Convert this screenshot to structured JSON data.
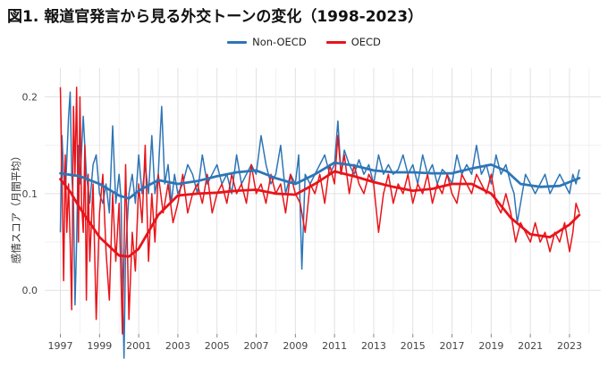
{
  "title": "図1. 報道官発言から見る外交トーンの変化（1998-2023）",
  "legend": [
    {
      "name": "Non-OECD",
      "color": "#2e75b6"
    },
    {
      "name": "OECD",
      "color": "#e8141a"
    }
  ],
  "chart_data": {
    "type": "line",
    "title": "図1. 報道官発言から見る外交トーンの変化（1998-2023）",
    "xlabel": "",
    "ylabel": "感情スコア（月間平均）",
    "xlim": [
      1996.2,
      2024.6
    ],
    "ylim": [
      -0.045,
      0.23
    ],
    "x_ticks": [
      1997,
      1999,
      2001,
      2003,
      2005,
      2007,
      2009,
      2011,
      2013,
      2015,
      2017,
      2019,
      2021,
      2023
    ],
    "x_tick_labels": [
      "1997",
      "1999",
      "2001",
      "2003",
      "2005",
      "2007",
      "2009",
      "2011",
      "2013",
      "2015",
      "2017",
      "2019",
      "2021",
      "2023"
    ],
    "y_ticks": [
      0.0,
      0.1,
      0.2
    ],
    "y_tick_labels": [
      "0.0",
      "0.1",
      "0.2"
    ],
    "grid": true,
    "legend_position": "top",
    "smooth_series": [
      {
        "name": "Non-OECD",
        "color": "#2e75b6",
        "x": [
          1997.0,
          1998.0,
          1999.0,
          2000.0,
          2000.5,
          2001.0,
          2002.0,
          2003.0,
          2004.0,
          2005.0,
          2006.0,
          2007.0,
          2008.0,
          2009.0,
          2010.0,
          2011.0,
          2012.0,
          2013.0,
          2014.0,
          2015.0,
          2016.0,
          2017.0,
          2018.0,
          2019.0,
          2019.8,
          2020.5,
          2021.5,
          2022.5,
          2023.5
        ],
        "y": [
          0.121,
          0.118,
          0.11,
          0.098,
          0.095,
          0.103,
          0.114,
          0.11,
          0.113,
          0.118,
          0.122,
          0.124,
          0.116,
          0.11,
          0.12,
          0.132,
          0.129,
          0.124,
          0.122,
          0.122,
          0.121,
          0.121,
          0.126,
          0.13,
          0.123,
          0.11,
          0.107,
          0.108,
          0.116
        ]
      },
      {
        "name": "OECD",
        "color": "#e8141a",
        "x": [
          1997.0,
          1997.5,
          1998.0,
          1999.0,
          2000.0,
          2000.5,
          2001.0,
          2002.0,
          2003.0,
          2004.0,
          2005.0,
          2006.0,
          2007.0,
          2008.0,
          2009.0,
          2010.0,
          2011.0,
          2012.0,
          2013.0,
          2014.0,
          2015.0,
          2016.0,
          2017.0,
          2018.0,
          2019.0,
          2020.0,
          2021.0,
          2022.0,
          2023.0,
          2023.5
        ],
        "y": [
          0.115,
          0.102,
          0.085,
          0.055,
          0.036,
          0.035,
          0.043,
          0.078,
          0.098,
          0.1,
          0.101,
          0.103,
          0.104,
          0.1,
          0.099,
          0.11,
          0.123,
          0.118,
          0.112,
          0.107,
          0.103,
          0.105,
          0.11,
          0.11,
          0.1,
          0.075,
          0.058,
          0.055,
          0.068,
          0.078
        ]
      }
    ],
    "series": [
      {
        "name": "Non-OECD",
        "color": "#2e75b6",
        "x": [
          1997.0,
          1997.08,
          1997.17,
          1997.25,
          1997.33,
          1997.42,
          1997.5,
          1997.58,
          1997.67,
          1997.75,
          1997.83,
          1997.92,
          1998.0,
          1998.17,
          1998.33,
          1998.5,
          1998.67,
          1998.83,
          1999.0,
          1999.17,
          1999.33,
          1999.5,
          1999.67,
          1999.83,
          2000.0,
          2000.1,
          2000.17,
          2000.25,
          2000.33,
          2000.5,
          2000.67,
          2000.83,
          2001.0,
          2001.17,
          2001.33,
          2001.5,
          2001.67,
          2001.83,
          2002.0,
          2002.17,
          2002.33,
          2002.5,
          2002.67,
          2002.83,
          2003.0,
          2003.25,
          2003.5,
          2003.75,
          2004.0,
          2004.25,
          2004.5,
          2004.75,
          2005.0,
          2005.25,
          2005.5,
          2005.75,
          2006.0,
          2006.25,
          2006.5,
          2006.75,
          2007.0,
          2007.25,
          2007.5,
          2007.75,
          2008.0,
          2008.25,
          2008.5,
          2008.75,
          2009.0,
          2009.17,
          2009.33,
          2009.5,
          2009.75,
          2010.0,
          2010.25,
          2010.5,
          2010.75,
          2011.0,
          2011.17,
          2011.33,
          2011.5,
          2011.75,
          2012.0,
          2012.25,
          2012.5,
          2012.75,
          2013.0,
          2013.25,
          2013.5,
          2013.75,
          2014.0,
          2014.25,
          2014.5,
          2014.75,
          2015.0,
          2015.25,
          2015.5,
          2015.75,
          2016.0,
          2016.25,
          2016.5,
          2016.75,
          2017.0,
          2017.25,
          2017.5,
          2017.75,
          2018.0,
          2018.25,
          2018.5,
          2018.75,
          2019.0,
          2019.25,
          2019.5,
          2019.75,
          2020.0,
          2020.17,
          2020.33,
          2020.5,
          2020.75,
          2021.0,
          2021.25,
          2021.5,
          2021.75,
          2022.0,
          2022.25,
          2022.5,
          2022.75,
          2023.0,
          2023.17,
          2023.33,
          2023.5
        ],
        "y": [
          0.06,
          0.16,
          0.12,
          0.1,
          0.135,
          0.18,
          0.205,
          0.12,
          0.09,
          -0.015,
          0.05,
          0.15,
          0.11,
          0.18,
          0.12,
          0.09,
          0.13,
          0.14,
          0.1,
          0.09,
          0.11,
          0.08,
          0.17,
          0.09,
          0.12,
          0.095,
          0.01,
          -0.07,
          0.04,
          0.1,
          0.12,
          0.09,
          0.14,
          0.1,
          0.13,
          0.1,
          0.16,
          0.1,
          0.12,
          0.19,
          0.11,
          0.13,
          0.09,
          0.12,
          0.1,
          0.11,
          0.13,
          0.12,
          0.1,
          0.14,
          0.11,
          0.12,
          0.13,
          0.11,
          0.12,
          0.1,
          0.14,
          0.11,
          0.12,
          0.13,
          0.12,
          0.16,
          0.13,
          0.11,
          0.12,
          0.15,
          0.1,
          0.12,
          0.11,
          0.14,
          0.022,
          0.12,
          0.11,
          0.12,
          0.13,
          0.14,
          0.12,
          0.13,
          0.175,
          0.12,
          0.145,
          0.13,
          0.12,
          0.135,
          0.12,
          0.13,
          0.11,
          0.14,
          0.12,
          0.13,
          0.12,
          0.125,
          0.14,
          0.12,
          0.13,
          0.11,
          0.14,
          0.12,
          0.13,
          0.11,
          0.125,
          0.12,
          0.11,
          0.14,
          0.12,
          0.13,
          0.12,
          0.15,
          0.12,
          0.13,
          0.11,
          0.14,
          0.12,
          0.13,
          0.11,
          0.1,
          0.07,
          0.09,
          0.12,
          0.11,
          0.1,
          0.11,
          0.12,
          0.1,
          0.11,
          0.12,
          0.11,
          0.1,
          0.12,
          0.11,
          0.125
        ]
      },
      {
        "name": "OECD",
        "color": "#e8141a",
        "x": [
          1997.0,
          1997.08,
          1997.17,
          1997.25,
          1997.33,
          1997.42,
          1997.5,
          1997.58,
          1997.67,
          1997.75,
          1997.83,
          1997.92,
          1998.0,
          1998.08,
          1998.17,
          1998.25,
          1998.33,
          1998.42,
          1998.5,
          1998.67,
          1998.83,
          1999.0,
          1999.17,
          1999.33,
          1999.5,
          1999.67,
          1999.83,
          2000.0,
          2000.17,
          2000.33,
          2000.5,
          2000.67,
          2000.83,
          2001.0,
          2001.17,
          2001.33,
          2001.5,
          2001.67,
          2001.83,
          2002.0,
          2002.25,
          2002.5,
          2002.75,
          2003.0,
          2003.25,
          2003.5,
          2003.75,
          2004.0,
          2004.25,
          2004.5,
          2004.75,
          2005.0,
          2005.25,
          2005.5,
          2005.75,
          2006.0,
          2006.25,
          2006.5,
          2006.75,
          2007.0,
          2007.25,
          2007.5,
          2007.75,
          2008.0,
          2008.25,
          2008.5,
          2008.75,
          2009.0,
          2009.25,
          2009.5,
          2009.75,
          2010.0,
          2010.25,
          2010.5,
          2010.75,
          2011.0,
          2011.17,
          2011.33,
          2011.5,
          2011.75,
          2012.0,
          2012.25,
          2012.5,
          2012.75,
          2013.0,
          2013.25,
          2013.5,
          2013.75,
          2014.0,
          2014.25,
          2014.5,
          2014.75,
          2015.0,
          2015.25,
          2015.5,
          2015.75,
          2016.0,
          2016.25,
          2016.5,
          2016.75,
          2017.0,
          2017.25,
          2017.5,
          2017.75,
          2018.0,
          2018.25,
          2018.5,
          2018.75,
          2019.0,
          2019.25,
          2019.5,
          2019.75,
          2020.0,
          2020.25,
          2020.5,
          2020.75,
          2021.0,
          2021.25,
          2021.5,
          2021.75,
          2022.0,
          2022.25,
          2022.5,
          2022.75,
          2023.0,
          2023.17,
          2023.33,
          2023.5
        ],
        "y": [
          0.21,
          0.12,
          0.01,
          0.14,
          0.06,
          0.11,
          0.05,
          -0.02,
          0.19,
          0.12,
          0.21,
          0.05,
          0.2,
          0.09,
          0.06,
          0.15,
          -0.01,
          0.12,
          0.03,
          0.11,
          -0.03,
          0.08,
          0.12,
          0.04,
          -0.01,
          0.1,
          0.03,
          0.09,
          -0.045,
          0.13,
          -0.03,
          0.06,
          0.02,
          0.11,
          0.07,
          0.15,
          0.03,
          0.1,
          0.05,
          0.12,
          0.08,
          0.11,
          0.07,
          0.09,
          0.12,
          0.08,
          0.1,
          0.11,
          0.09,
          0.12,
          0.08,
          0.1,
          0.11,
          0.09,
          0.12,
          0.1,
          0.11,
          0.09,
          0.13,
          0.1,
          0.11,
          0.09,
          0.12,
          0.1,
          0.11,
          0.08,
          0.12,
          0.1,
          0.09,
          0.06,
          0.11,
          0.1,
          0.12,
          0.09,
          0.13,
          0.11,
          0.16,
          0.12,
          0.14,
          0.1,
          0.13,
          0.11,
          0.1,
          0.12,
          0.11,
          0.06,
          0.1,
          0.12,
          0.09,
          0.11,
          0.1,
          0.12,
          0.09,
          0.11,
          0.1,
          0.12,
          0.09,
          0.11,
          0.1,
          0.12,
          0.1,
          0.09,
          0.12,
          0.11,
          0.1,
          0.12,
          0.11,
          0.1,
          0.12,
          0.09,
          0.08,
          0.1,
          0.08,
          0.05,
          0.07,
          0.06,
          0.05,
          0.07,
          0.05,
          0.06,
          0.04,
          0.06,
          0.05,
          0.07,
          0.04,
          0.06,
          0.09,
          0.08
        ]
      }
    ]
  }
}
